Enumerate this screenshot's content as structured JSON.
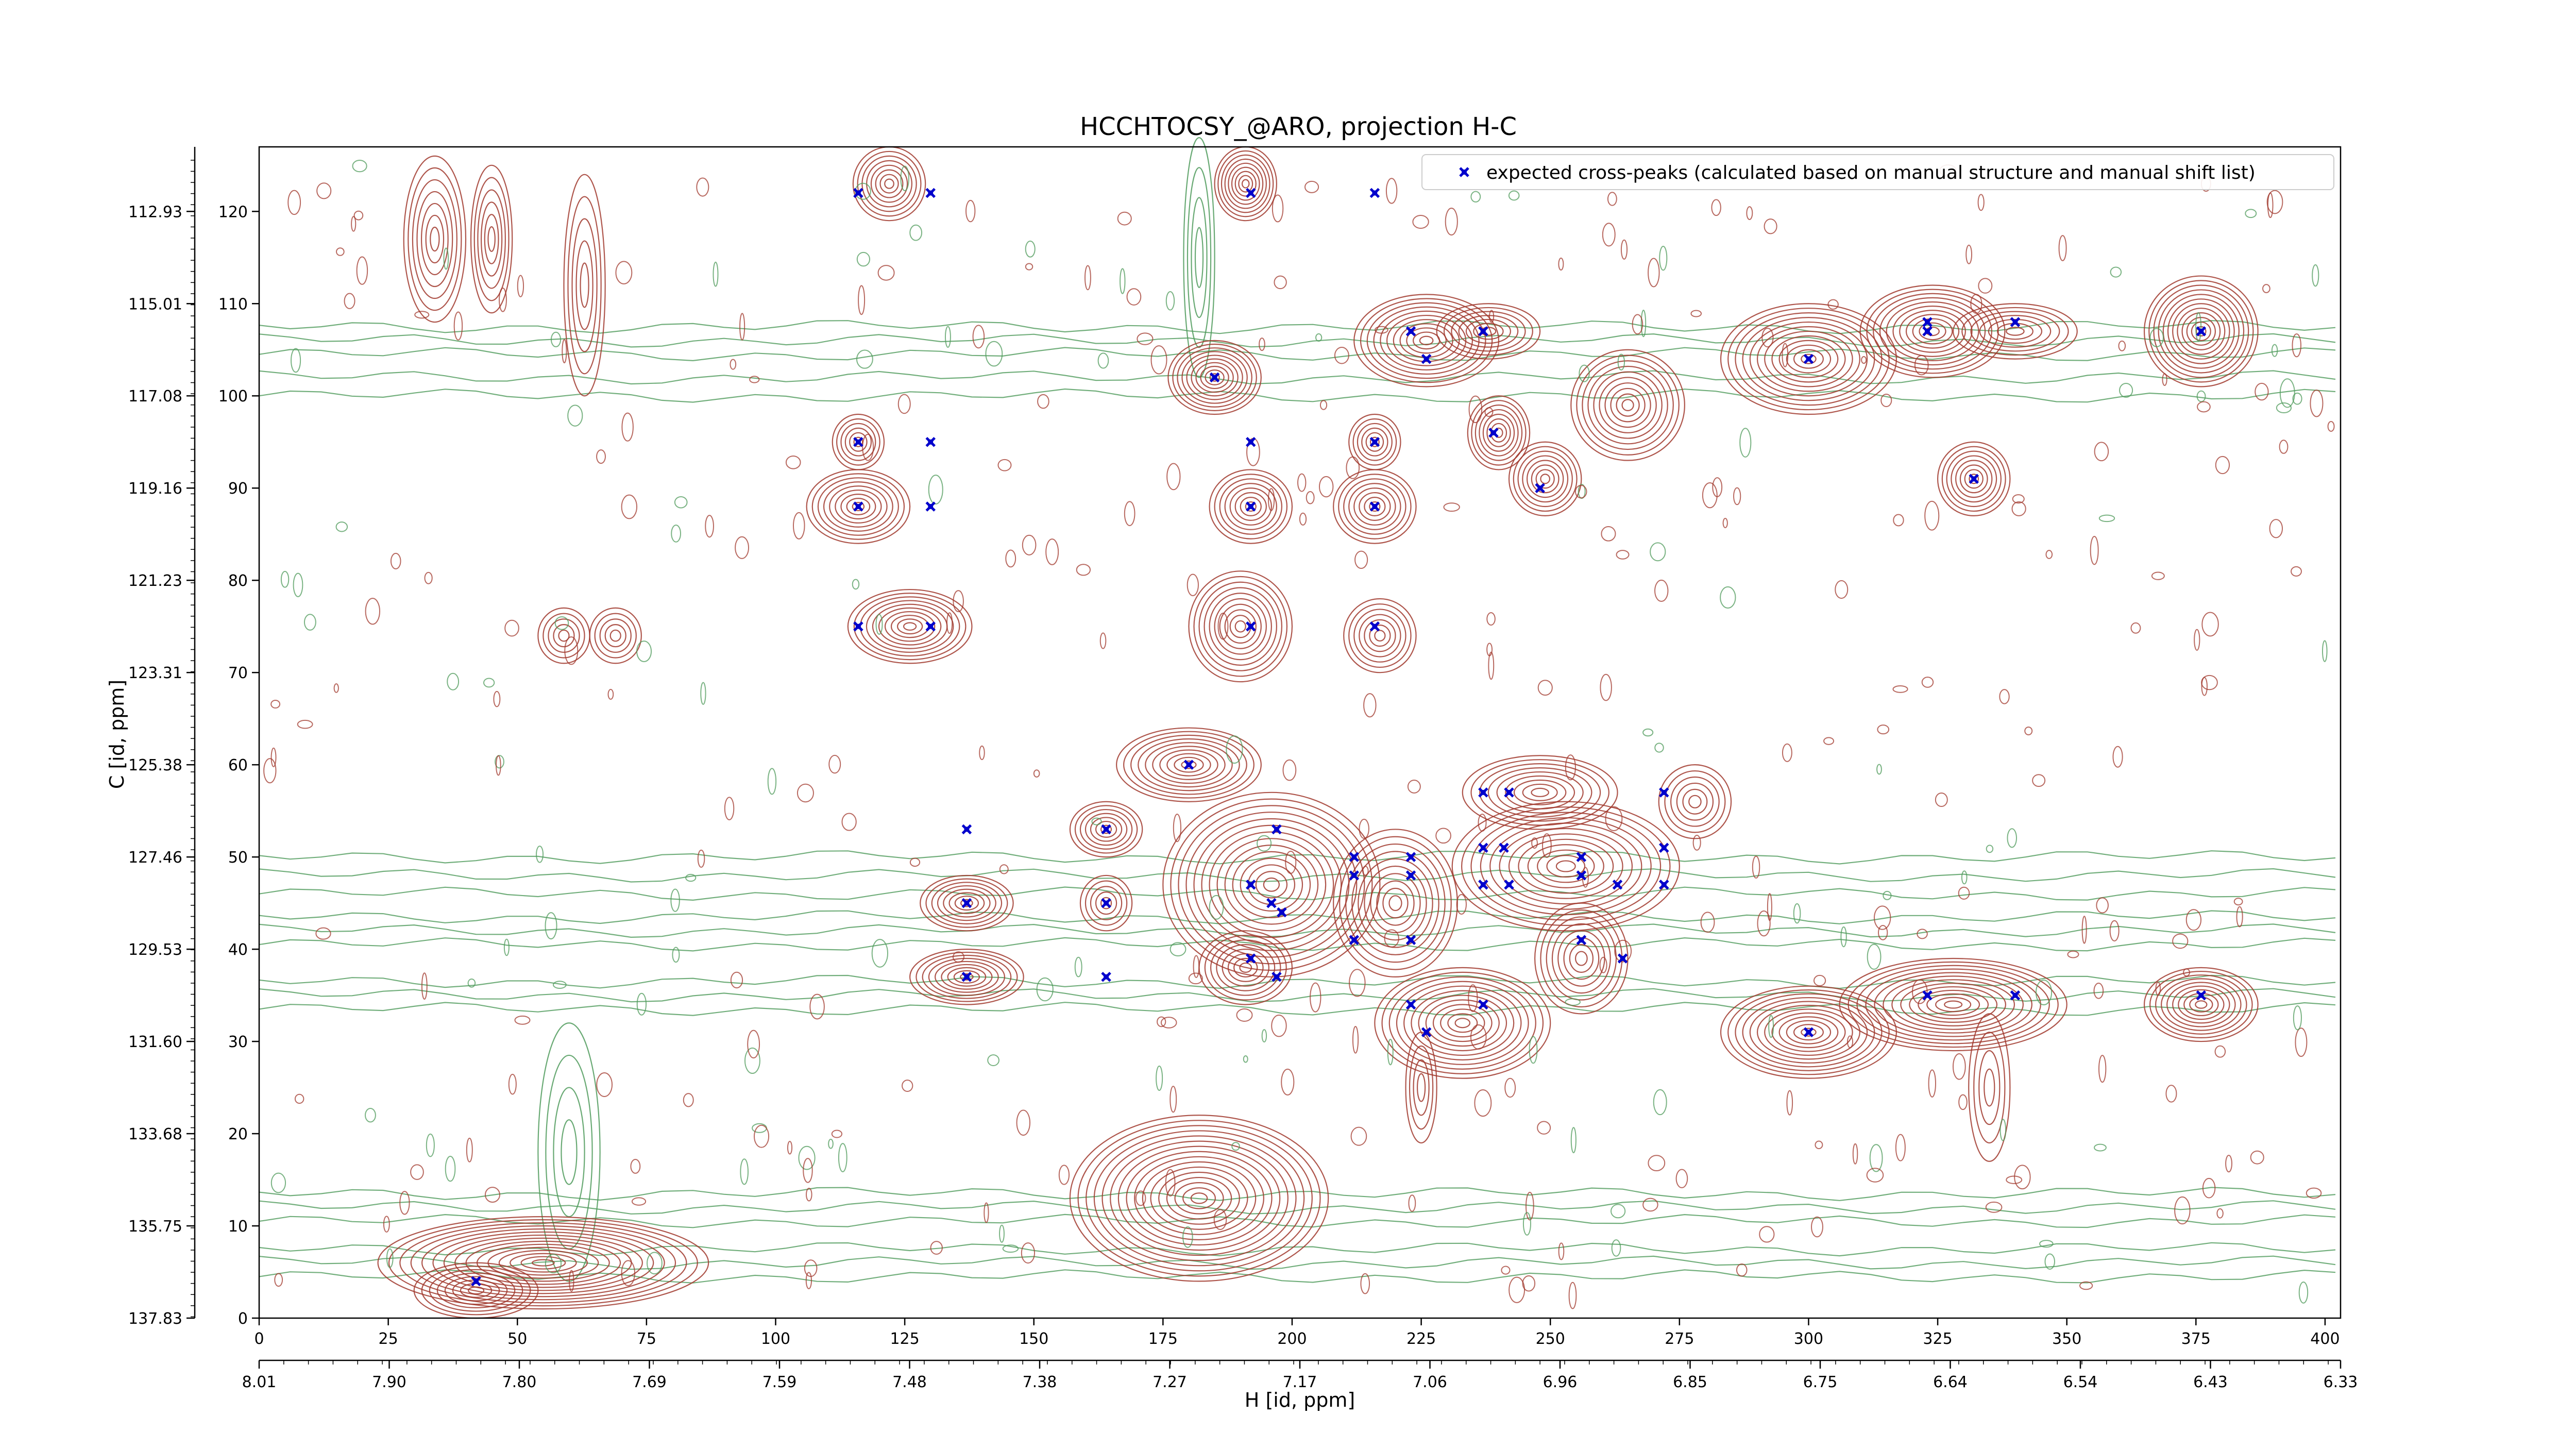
{
  "chart_data": {
    "type": "scatter",
    "title": "HCCHTOCSY_@ARO, projection H-C",
    "xlabel": "H [id, ppm]",
    "ylabel": "C [id, ppm]",
    "x_index_range": [
      0,
      403
    ],
    "y_index_range": [
      0,
      127
    ],
    "x_ticks": [
      0,
      25,
      50,
      75,
      100,
      125,
      150,
      175,
      200,
      225,
      250,
      275,
      300,
      325,
      350,
      375,
      400
    ],
    "y_ticks": [
      0,
      10,
      20,
      30,
      40,
      50,
      60,
      70,
      80,
      90,
      100,
      110,
      120
    ],
    "secondary_x_axis": {
      "label": "H [id, ppm]",
      "range_ppm": [
        8.01,
        6.32
      ],
      "tick_labels": [
        "8.01",
        "7.90",
        "7.80",
        "7.69",
        "7.59",
        "7.48",
        "7.38",
        "7.27",
        "7.17",
        "7.06",
        "6.96",
        "6.85",
        "6.75",
        "6.64",
        "6.54",
        "6.43",
        "6.33"
      ]
    },
    "secondary_y_axis": {
      "label": "C [id, ppm]",
      "range_ppm": [
        137.83,
        111.5
      ],
      "tick_labels": [
        "137.83",
        "135.75",
        "133.68",
        "131.60",
        "129.53",
        "127.46",
        "125.38",
        "123.31",
        "121.23",
        "119.16",
        "117.08",
        "115.01",
        "112.93"
      ]
    },
    "contour_colors": {
      "positive": "#a0372b",
      "negative": "#4e9a5a"
    },
    "series": [
      {
        "name": "expected cross-peaks (calculated based on manual structure and manual shift list)",
        "color": "#0000cc",
        "marker": "x",
        "points": [
          [
            116,
            122
          ],
          [
            130,
            122
          ],
          [
            192,
            122
          ],
          [
            216,
            122
          ],
          [
            223,
            107
          ],
          [
            237,
            107
          ],
          [
            226,
            104
          ],
          [
            300,
            104
          ],
          [
            323,
            108
          ],
          [
            323,
            107
          ],
          [
            340,
            108
          ],
          [
            376,
            107
          ],
          [
            185,
            102
          ],
          [
            239,
            96
          ],
          [
            248,
            90
          ],
          [
            332,
            91
          ],
          [
            116,
            95
          ],
          [
            130,
            95
          ],
          [
            192,
            95
          ],
          [
            216,
            95
          ],
          [
            116,
            88
          ],
          [
            130,
            88
          ],
          [
            192,
            88
          ],
          [
            216,
            88
          ],
          [
            116,
            75
          ],
          [
            130,
            75
          ],
          [
            192,
            75
          ],
          [
            216,
            75
          ],
          [
            180,
            60
          ],
          [
            237,
            57
          ],
          [
            242,
            57
          ],
          [
            272,
            57
          ],
          [
            137,
            53
          ],
          [
            164,
            53
          ],
          [
            197,
            53
          ],
          [
            212,
            50
          ],
          [
            223,
            50
          ],
          [
            237,
            51
          ],
          [
            241,
            51
          ],
          [
            256,
            50
          ],
          [
            272,
            51
          ],
          [
            192,
            47
          ],
          [
            212,
            48
          ],
          [
            223,
            48
          ],
          [
            256,
            48
          ],
          [
            237,
            47
          ],
          [
            242,
            47
          ],
          [
            263,
            47
          ],
          [
            272,
            47
          ],
          [
            137,
            45
          ],
          [
            164,
            45
          ],
          [
            196,
            45
          ],
          [
            198,
            44
          ],
          [
            212,
            41
          ],
          [
            223,
            41
          ],
          [
            256,
            41
          ],
          [
            192,
            39
          ],
          [
            197,
            37
          ],
          [
            137,
            37
          ],
          [
            164,
            37
          ],
          [
            264,
            39
          ],
          [
            223,
            34
          ],
          [
            237,
            34
          ],
          [
            226,
            31
          ],
          [
            300,
            31
          ],
          [
            323,
            35
          ],
          [
            340,
            35
          ],
          [
            376,
            35
          ],
          [
            42,
            4
          ]
        ]
      }
    ],
    "legend_position": "upper right"
  }
}
